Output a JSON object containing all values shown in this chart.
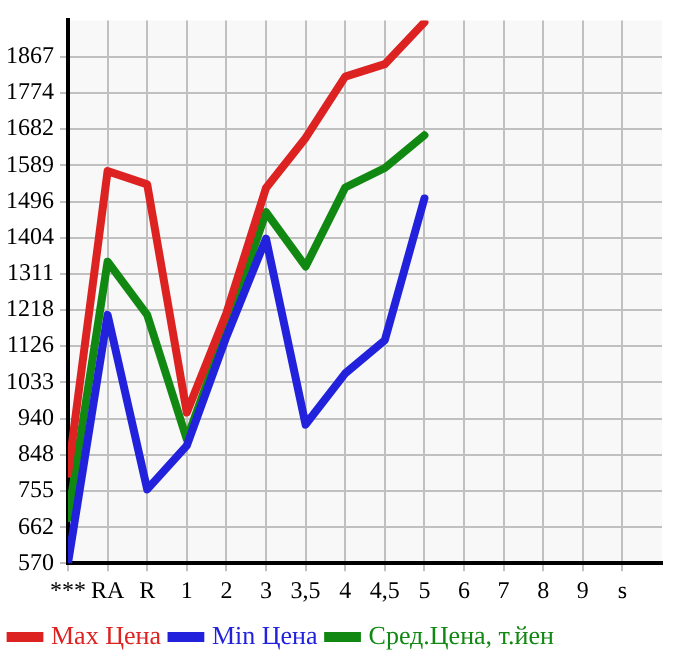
{
  "chart_data": {
    "type": "line",
    "categories": [
      "***",
      "RA",
      "R",
      "1",
      "2",
      "3",
      "3,5",
      "4",
      "4,5",
      "5",
      "6",
      "7",
      "8",
      "9",
      "s"
    ],
    "series": [
      {
        "name": "Max Цена",
        "color": "#dd2222",
        "values": [
          799,
          1574,
          1540,
          956,
          1210,
          1531,
          1659,
          1816,
          1848,
          1955,
          null,
          null,
          null,
          null,
          null
        ]
      },
      {
        "name": "Min Цена",
        "color": "#2222dd",
        "values": [
          570,
          1206,
          759,
          871,
          1150,
          1401,
          925,
          1056,
          1141,
          1504,
          null,
          null,
          null,
          null,
          null
        ]
      },
      {
        "name": "Сред.Цена, т.йен",
        "color": "#118811",
        "values": [
          686,
          1342,
          1206,
          887,
          1170,
          1469,
          1330,
          1532,
          1582,
          1666,
          null,
          null,
          null,
          null,
          null
        ]
      }
    ],
    "ylim": [
      570,
      1960
    ],
    "yticks": [
      570,
      662,
      755,
      848,
      940,
      1033,
      1126,
      1218,
      1311,
      1404,
      1496,
      1589,
      1682,
      1774,
      1867
    ],
    "grid": true,
    "legend": "bottom",
    "marker": "none",
    "line_style": "solid"
  }
}
